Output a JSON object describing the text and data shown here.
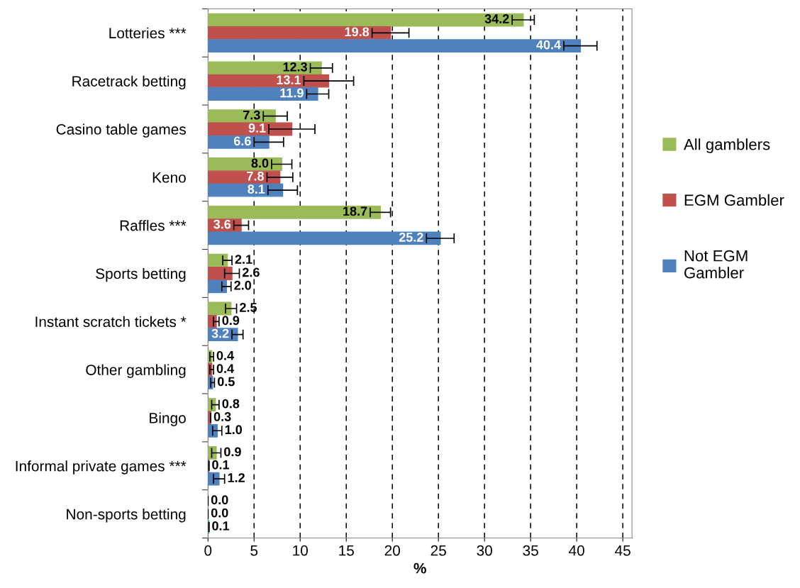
{
  "chart_data": {
    "type": "bar",
    "orientation": "horizontal",
    "xlabel": "%",
    "categories": [
      "Lotteries ***",
      "Racetrack betting",
      "Casino table games",
      "Keno",
      "Raffles ***",
      "Sports betting",
      "Instant scratch tickets *",
      "Other gambling",
      "Bingo",
      "Informal private games ***",
      "Non-sports betting"
    ],
    "series": [
      {
        "name": "All gamblers",
        "color": "#9bbb59",
        "values": [
          34.2,
          12.3,
          7.3,
          8.0,
          18.7,
          2.1,
          2.5,
          0.4,
          0.8,
          0.9,
          0.0
        ],
        "errors": [
          1.2,
          1.2,
          1.3,
          1.1,
          1.1,
          0.5,
          0.6,
          0.2,
          0.4,
          0.5,
          null
        ],
        "value_labels": [
          "34.2",
          "12.3",
          "7.3",
          "8.0",
          "18.7",
          "2.1",
          "2.5",
          "0.4",
          "0.8",
          "0.9",
          "0.0"
        ]
      },
      {
        "name": "EGM Gambler",
        "color": "#c0504d",
        "values": [
          19.8,
          13.1,
          9.1,
          7.8,
          3.6,
          2.6,
          0.9,
          0.4,
          0.3,
          0.1,
          0.0
        ],
        "errors": [
          2.0,
          2.7,
          2.5,
          1.4,
          0.8,
          0.8,
          0.3,
          0.2,
          null,
          null,
          null
        ],
        "value_labels": [
          "19.8",
          "13.1",
          "9.1",
          "7.8",
          "3.6",
          "2.6",
          "0.9",
          "0.4",
          "0.3",
          "0.1",
          "0.0"
        ]
      },
      {
        "name": "Not EGM Gambler",
        "color": "#4f81bd",
        "values": [
          40.4,
          11.9,
          6.6,
          8.1,
          25.2,
          2.0,
          3.2,
          0.5,
          1.0,
          1.2,
          0.1
        ],
        "errors": [
          1.8,
          1.2,
          1.6,
          1.6,
          1.5,
          0.5,
          0.6,
          0.2,
          0.5,
          0.6,
          null
        ],
        "value_labels": [
          "40.4",
          "11.9",
          "6.6",
          "8.1",
          "25.2",
          "2.0",
          "3.2",
          "0.5",
          "1.0",
          "1.2",
          "0.1"
        ]
      }
    ],
    "xlim": [
      0,
      46
    ],
    "xticks": [
      0,
      5,
      10,
      15,
      20,
      25,
      30,
      35,
      40,
      45
    ],
    "grid": "x",
    "legend": "right"
  }
}
